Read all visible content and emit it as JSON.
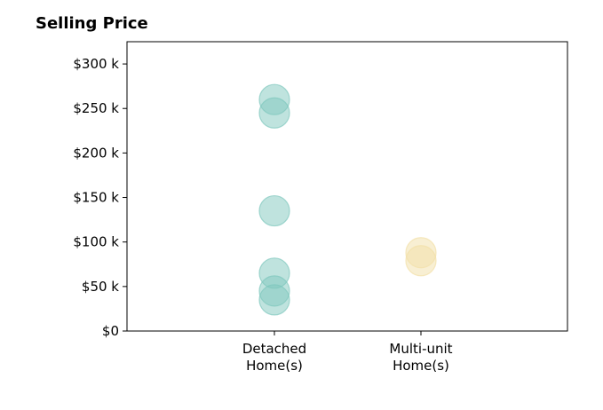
{
  "chart_data": {
    "type": "scatter",
    "title": "Selling Price",
    "xlabel": "",
    "ylabel": "",
    "categories": [
      "Detached Home(s)",
      "Multi-unit Home(s)"
    ],
    "category_lines": [
      [
        "Detached",
        "Home(s)"
      ],
      [
        "Multi-unit",
        "Home(s)"
      ]
    ],
    "ylim": [
      0,
      325000
    ],
    "yticks": [
      {
        "value": 0,
        "label": "$0"
      },
      {
        "value": 50000,
        "label": "$50 k"
      },
      {
        "value": 100000,
        "label": "$100 k"
      },
      {
        "value": 150000,
        "label": "$150 k"
      },
      {
        "value": 200000,
        "label": "$200 k"
      },
      {
        "value": 250000,
        "label": "$250 k"
      },
      {
        "value": 300000,
        "label": "$300 k"
      }
    ],
    "series": [
      {
        "category": "Detached Home(s)",
        "color": "#7fc8bd",
        "values": [
          260000,
          245000,
          135000,
          65000,
          45000,
          35000
        ]
      },
      {
        "category": "Multi-unit Home(s)",
        "color": "#f2dfa7",
        "values": [
          88000,
          79000
        ]
      }
    ],
    "grid": false,
    "legend": "none"
  }
}
